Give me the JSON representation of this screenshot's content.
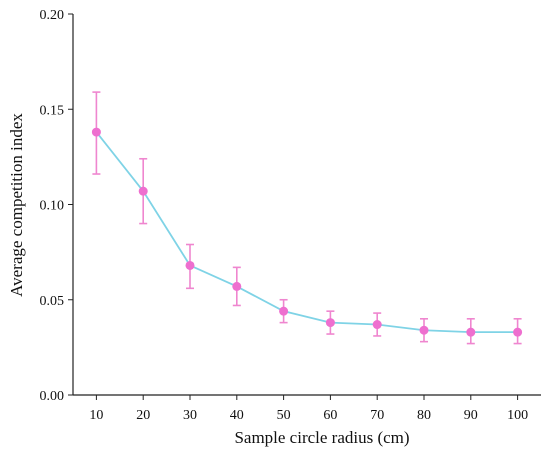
{
  "chart_data": {
    "type": "line",
    "title": "",
    "xlabel": "Sample circle radius (cm)",
    "ylabel": "Average competition index",
    "x": [
      10,
      20,
      30,
      40,
      50,
      60,
      70,
      80,
      90,
      100
    ],
    "y": [
      0.138,
      0.107,
      0.068,
      0.057,
      0.044,
      0.038,
      0.037,
      0.034,
      0.033,
      0.033
    ],
    "y_error_upper": [
      0.159,
      0.124,
      0.079,
      0.067,
      0.05,
      0.044,
      0.043,
      0.04,
      0.04,
      0.04
    ],
    "y_error_lower": [
      0.116,
      0.09,
      0.056,
      0.047,
      0.038,
      0.032,
      0.031,
      0.028,
      0.027,
      0.027
    ],
    "x_ticks": [
      "10",
      "20",
      "30",
      "40",
      "50",
      "60",
      "70",
      "80",
      "90",
      "100"
    ],
    "y_ticks": [
      "0.00",
      "0.05",
      "0.10",
      "0.15",
      "0.20"
    ],
    "xlim": [
      5,
      105
    ],
    "ylim": [
      0,
      0.2
    ],
    "grid": false,
    "legend": "none",
    "colors": {
      "line": "#7fd3e6",
      "marker": "#ee6fcf",
      "error_bar": "#ef86cf",
      "axis": "#222222"
    }
  }
}
